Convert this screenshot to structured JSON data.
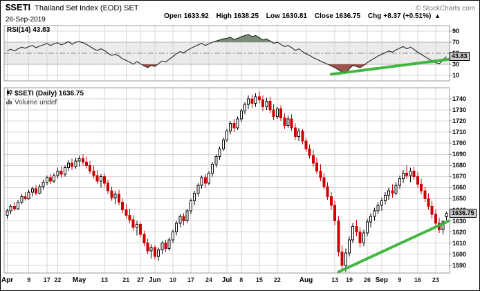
{
  "header": {
    "symbol": "$SETI",
    "title": "Thailand Set Index (EOD) SET",
    "copyright": "© StockCharts.com",
    "date": "26-Sep-2019",
    "quote": {
      "open_label": "Open",
      "open_value": "1633.92",
      "high_label": "High",
      "high_value": "1638.25",
      "low_label": "Low",
      "low_value": "1630.81",
      "close_label": "Close",
      "close_value": "1636.75",
      "chg_label": "Chg",
      "chg_value": "+8.37 (+0.51%)",
      "chg_arrow": "▲"
    }
  },
  "rsi_panel": {
    "label": "RSI(14) 43.83",
    "current_value": "43.83"
  },
  "price_panel": {
    "label": "$SETI (Daily) 1636.75",
    "volume_label": "Volume undef",
    "current_value": "1636.75"
  },
  "colors": {
    "candle_up_stroke": "#000000",
    "candle_up_fill": "#ffffff",
    "candle_down": "#cc0000",
    "trendline": "#33b333",
    "grid": "#d4d4d4",
    "panel_border": "#999999",
    "rsi_line": "#222222",
    "rsi_band": "#ebebeb",
    "rsi_overbought_fill": "#6d7f68",
    "rsi_oversold_fill": "#94403d",
    "value_box_bg": "#cccccc"
  },
  "chart_data": {
    "type": "candlestick",
    "title": "$SETI (Daily)",
    "timeframe": "Daily",
    "last_close": 1636.75,
    "rsi_last": 43.83,
    "price_axis": {
      "min": 1583,
      "max": 1750,
      "tick_step": 10,
      "ticks": [
        1740,
        1730,
        1720,
        1710,
        1700,
        1690,
        1680,
        1670,
        1660,
        1650,
        1640,
        1630,
        1620,
        1610,
        1600,
        1590
      ]
    },
    "rsi_axis": {
      "min": 0,
      "max": 100,
      "ticks": [
        90,
        70,
        50,
        30,
        10
      ],
      "overbought": 70,
      "oversold": 30,
      "midline": 50
    },
    "x_ticks": [
      {
        "i": 0,
        "label": "Apr",
        "month": true
      },
      {
        "i": 6,
        "label": "9"
      },
      {
        "i": 11,
        "label": "17"
      },
      {
        "i": 14,
        "label": "22"
      },
      {
        "i": 20,
        "label": "May",
        "month": true
      },
      {
        "i": 27,
        "label": "13"
      },
      {
        "i": 33,
        "label": "21"
      },
      {
        "i": 37,
        "label": "27"
      },
      {
        "i": 41,
        "label": "Jun",
        "month": true
      },
      {
        "i": 46,
        "label": "10"
      },
      {
        "i": 51,
        "label": "17"
      },
      {
        "i": 56,
        "label": "24"
      },
      {
        "i": 61,
        "label": "Jul",
        "month": true
      },
      {
        "i": 65,
        "label": "8"
      },
      {
        "i": 70,
        "label": "15"
      },
      {
        "i": 75,
        "label": "22"
      },
      {
        "i": 83,
        "label": "Aug",
        "month": true
      },
      {
        "i": 91,
        "label": "13"
      },
      {
        "i": 95,
        "label": "19"
      },
      {
        "i": 100,
        "label": "26"
      },
      {
        "i": 104,
        "label": "Sep",
        "month": true
      },
      {
        "i": 109,
        "label": "9"
      },
      {
        "i": 114,
        "label": "16"
      },
      {
        "i": 119,
        "label": "23"
      }
    ],
    "candles": [
      [
        1635,
        1641,
        1632,
        1639
      ],
      [
        1639,
        1645,
        1636,
        1643
      ],
      [
        1643,
        1647,
        1639,
        1641
      ],
      [
        1641,
        1649,
        1640,
        1647
      ],
      [
        1647,
        1654,
        1645,
        1652
      ],
      [
        1652,
        1656,
        1648,
        1650
      ],
      [
        1650,
        1658,
        1649,
        1656
      ],
      [
        1656,
        1661,
        1652,
        1659
      ],
      [
        1659,
        1662,
        1653,
        1655
      ],
      [
        1655,
        1663,
        1654,
        1661
      ],
      [
        1661,
        1667,
        1658,
        1665
      ],
      [
        1665,
        1671,
        1662,
        1669
      ],
      [
        1669,
        1672,
        1663,
        1666
      ],
      [
        1666,
        1673,
        1664,
        1671
      ],
      [
        1671,
        1678,
        1668,
        1675
      ],
      [
        1675,
        1679,
        1669,
        1672
      ],
      [
        1672,
        1680,
        1670,
        1678
      ],
      [
        1678,
        1685,
        1675,
        1682
      ],
      [
        1682,
        1686,
        1676,
        1679
      ],
      [
        1679,
        1687,
        1677,
        1684
      ],
      [
        1684,
        1689,
        1679,
        1686
      ],
      [
        1686,
        1690,
        1680,
        1683
      ],
      [
        1683,
        1688,
        1677,
        1680
      ],
      [
        1680,
        1684,
        1672,
        1675
      ],
      [
        1675,
        1680,
        1668,
        1671
      ],
      [
        1671,
        1676,
        1663,
        1666
      ],
      [
        1666,
        1672,
        1660,
        1670
      ],
      [
        1670,
        1673,
        1661,
        1664
      ],
      [
        1664,
        1667,
        1654,
        1657
      ],
      [
        1657,
        1661,
        1648,
        1651
      ],
      [
        1651,
        1657,
        1645,
        1654
      ],
      [
        1654,
        1658,
        1644,
        1647
      ],
      [
        1647,
        1650,
        1637,
        1640
      ],
      [
        1640,
        1645,
        1632,
        1635
      ],
      [
        1635,
        1641,
        1628,
        1631
      ],
      [
        1631,
        1635,
        1621,
        1624
      ],
      [
        1624,
        1630,
        1617,
        1627
      ],
      [
        1627,
        1629,
        1615,
        1618
      ],
      [
        1618,
        1621,
        1607,
        1610
      ],
      [
        1610,
        1614,
        1600,
        1603
      ],
      [
        1603,
        1609,
        1596,
        1606
      ],
      [
        1606,
        1608,
        1595,
        1598
      ],
      [
        1598,
        1606,
        1594,
        1604
      ],
      [
        1604,
        1612,
        1600,
        1610
      ],
      [
        1610,
        1613,
        1602,
        1605
      ],
      [
        1605,
        1615,
        1603,
        1613
      ],
      [
        1613,
        1622,
        1610,
        1620
      ],
      [
        1620,
        1630,
        1617,
        1628
      ],
      [
        1628,
        1636,
        1624,
        1634
      ],
      [
        1634,
        1637,
        1626,
        1630
      ],
      [
        1630,
        1641,
        1628,
        1639
      ],
      [
        1639,
        1650,
        1636,
        1648
      ],
      [
        1648,
        1657,
        1644,
        1655
      ],
      [
        1655,
        1664,
        1652,
        1662
      ],
      [
        1662,
        1671,
        1659,
        1669
      ],
      [
        1669,
        1672,
        1660,
        1664
      ],
      [
        1664,
        1675,
        1662,
        1673
      ],
      [
        1673,
        1683,
        1670,
        1681
      ],
      [
        1681,
        1690,
        1678,
        1688
      ],
      [
        1688,
        1697,
        1685,
        1695
      ],
      [
        1695,
        1705,
        1693,
        1703
      ],
      [
        1703,
        1713,
        1701,
        1711
      ],
      [
        1711,
        1720,
        1708,
        1718
      ],
      [
        1718,
        1722,
        1710,
        1714
      ],
      [
        1714,
        1724,
        1712,
        1722
      ],
      [
        1722,
        1731,
        1719,
        1729
      ],
      [
        1729,
        1737,
        1726,
        1735
      ],
      [
        1735,
        1743,
        1731,
        1740
      ],
      [
        1740,
        1744,
        1732,
        1736
      ],
      [
        1736,
        1745,
        1733,
        1742
      ],
      [
        1742,
        1747,
        1736,
        1739
      ],
      [
        1739,
        1743,
        1729,
        1733
      ],
      [
        1733,
        1741,
        1730,
        1738
      ],
      [
        1738,
        1742,
        1727,
        1730
      ],
      [
        1730,
        1735,
        1721,
        1724
      ],
      [
        1724,
        1733,
        1722,
        1731
      ],
      [
        1731,
        1734,
        1720,
        1723
      ],
      [
        1723,
        1727,
        1713,
        1716
      ],
      [
        1716,
        1725,
        1714,
        1722
      ],
      [
        1722,
        1726,
        1711,
        1714
      ],
      [
        1714,
        1718,
        1703,
        1706
      ],
      [
        1706,
        1714,
        1702,
        1711
      ],
      [
        1711,
        1713,
        1699,
        1702
      ],
      [
        1702,
        1705,
        1692,
        1695
      ],
      [
        1695,
        1699,
        1686,
        1689
      ],
      [
        1689,
        1694,
        1679,
        1682
      ],
      [
        1682,
        1687,
        1672,
        1675
      ],
      [
        1675,
        1681,
        1666,
        1669
      ],
      [
        1669,
        1673,
        1658,
        1661
      ],
      [
        1661,
        1665,
        1649,
        1652
      ],
      [
        1652,
        1656,
        1640,
        1644
      ],
      [
        1644,
        1648,
        1626,
        1630
      ],
      [
        1630,
        1634,
        1598,
        1602
      ],
      [
        1602,
        1608,
        1585,
        1590
      ],
      [
        1590,
        1605,
        1584,
        1601
      ],
      [
        1601,
        1616,
        1598,
        1613
      ],
      [
        1613,
        1628,
        1610,
        1625
      ],
      [
        1625,
        1631,
        1616,
        1620
      ],
      [
        1620,
        1624,
        1606,
        1610
      ],
      [
        1610,
        1622,
        1607,
        1619
      ],
      [
        1619,
        1632,
        1616,
        1629
      ],
      [
        1629,
        1637,
        1624,
        1634
      ],
      [
        1634,
        1642,
        1630,
        1639
      ],
      [
        1639,
        1647,
        1636,
        1644
      ],
      [
        1644,
        1651,
        1639,
        1648
      ],
      [
        1648,
        1656,
        1645,
        1653
      ],
      [
        1653,
        1660,
        1649,
        1657
      ],
      [
        1657,
        1663,
        1651,
        1655
      ],
      [
        1655,
        1665,
        1653,
        1662
      ],
      [
        1662,
        1671,
        1659,
        1668
      ],
      [
        1668,
        1676,
        1664,
        1673
      ],
      [
        1673,
        1680,
        1668,
        1671
      ],
      [
        1671,
        1678,
        1665,
        1675
      ],
      [
        1675,
        1679,
        1667,
        1670
      ],
      [
        1670,
        1674,
        1660,
        1663
      ],
      [
        1663,
        1668,
        1654,
        1657
      ],
      [
        1657,
        1661,
        1647,
        1650
      ],
      [
        1650,
        1655,
        1640,
        1643
      ],
      [
        1643,
        1648,
        1632,
        1636
      ],
      [
        1636,
        1640,
        1624,
        1628
      ],
      [
        1628,
        1633,
        1619,
        1622
      ],
      [
        1622,
        1631,
        1618,
        1629
      ],
      [
        1633.92,
        1638.25,
        1630.81,
        1636.75
      ]
    ],
    "rsi_values": [
      55,
      57,
      54,
      58,
      61,
      59,
      62,
      64,
      60,
      63,
      65,
      68,
      64,
      67,
      69,
      65,
      68,
      71,
      66,
      70,
      71,
      69,
      66,
      62,
      58,
      55,
      58,
      55,
      50,
      46,
      48,
      45,
      40,
      37,
      34,
      30,
      35,
      31,
      27,
      24,
      28,
      26,
      31,
      36,
      34,
      39,
      44,
      49,
      53,
      51,
      55,
      59,
      62,
      65,
      68,
      64,
      67,
      70,
      72,
      74,
      76,
      77,
      79,
      75,
      77,
      80,
      82,
      84,
      80,
      82,
      78,
      74,
      76,
      72,
      68,
      70,
      66,
      62,
      64,
      60,
      55,
      58,
      53,
      49,
      46,
      42,
      39,
      36,
      33,
      30,
      27,
      24,
      20,
      16,
      14,
      22,
      28,
      26,
      24,
      28,
      33,
      37,
      41,
      45,
      48,
      51,
      54,
      52,
      56,
      59,
      62,
      58,
      61,
      57,
      52,
      48,
      44,
      40,
      36,
      33,
      31,
      38,
      43.83
    ],
    "trendlines": [
      {
        "panel": "price",
        "from_index": 92,
        "from_value": 1584,
        "to_index": 123,
        "to_value": 1630,
        "width": 4
      },
      {
        "panel": "rsi",
        "from_index": 90,
        "from_value": 12,
        "to_index": 123,
        "to_value": 39,
        "width": 4
      }
    ]
  }
}
